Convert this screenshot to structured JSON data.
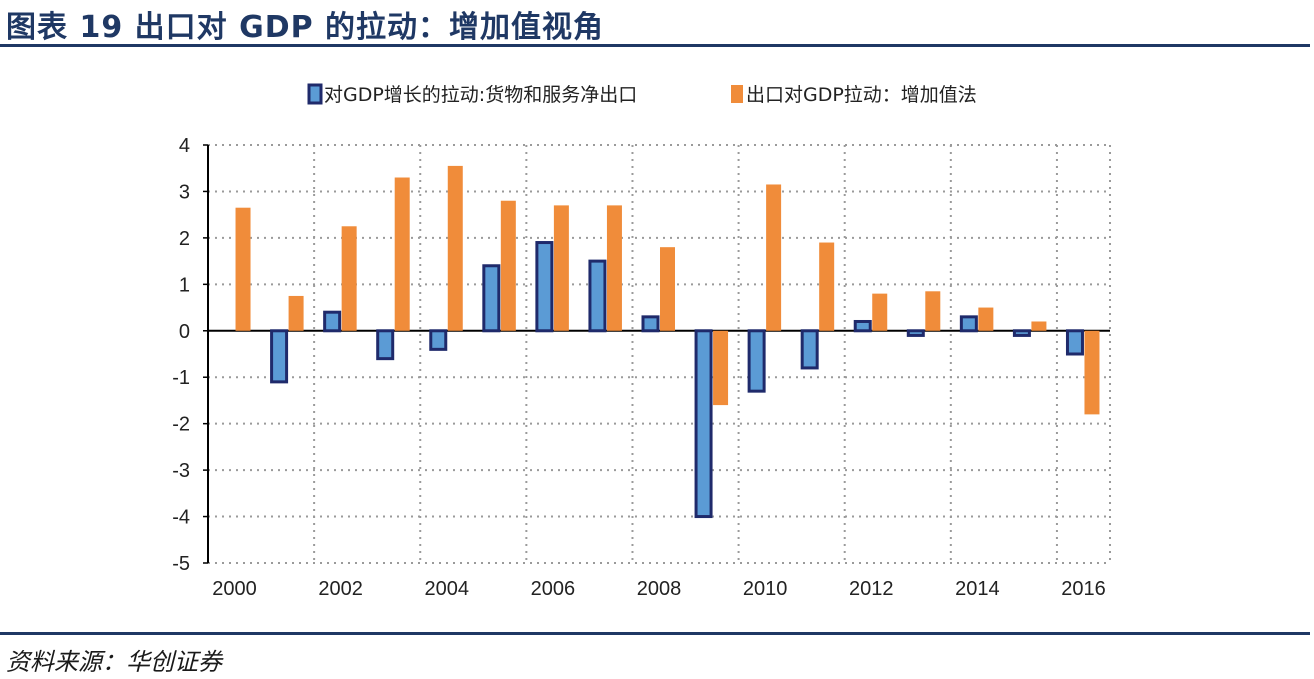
{
  "header": {
    "title": "图表 19  出口对 GDP 的拉动：增加值视角"
  },
  "footer": {
    "source": "资料来源：华创证券"
  },
  "colors": {
    "series_blue_fill": "#5b9bd5",
    "series_blue_stroke": "#1f2a6b",
    "series_orange": "#f08c3a",
    "title": "#1f3864"
  },
  "chart_data": {
    "type": "bar",
    "title": "出口对 GDP 的拉动：增加值视角",
    "xlabel": "",
    "ylabel": "",
    "ylim": [
      -5,
      4
    ],
    "yticks": [
      "4",
      "3",
      "2",
      "1",
      "0",
      "-1",
      "-2",
      "-3",
      "-4",
      "-5"
    ],
    "ytick_values": [
      4,
      3,
      2,
      1,
      0,
      -1,
      -2,
      -3,
      -4,
      -5
    ],
    "categories": [
      "2000",
      "2001",
      "2002",
      "2003",
      "2004",
      "2005",
      "2006",
      "2007",
      "2008",
      "2009",
      "2010",
      "2011",
      "2012",
      "2013",
      "2014",
      "2015",
      "2016"
    ],
    "xtick_labels": [
      "2000",
      "2002",
      "2004",
      "2006",
      "2008",
      "2010",
      "2012",
      "2014",
      "2016"
    ],
    "grid": true,
    "legend_position": "top",
    "series": [
      {
        "name": "对GDP增长的拉动:货物和服务净出口",
        "values": [
          0.0,
          -1.1,
          0.4,
          -0.6,
          -0.4,
          1.4,
          1.9,
          1.5,
          0.3,
          -4.0,
          -1.3,
          -0.8,
          0.2,
          -0.1,
          0.3,
          -0.1,
          -0.5
        ]
      },
      {
        "name": "出口对GDP拉动：增加值法",
        "values": [
          2.65,
          0.75,
          2.25,
          3.3,
          3.55,
          2.8,
          2.7,
          2.7,
          1.8,
          -1.6,
          3.15,
          1.9,
          0.8,
          0.85,
          0.5,
          0.2,
          -1.8
        ]
      }
    ]
  }
}
